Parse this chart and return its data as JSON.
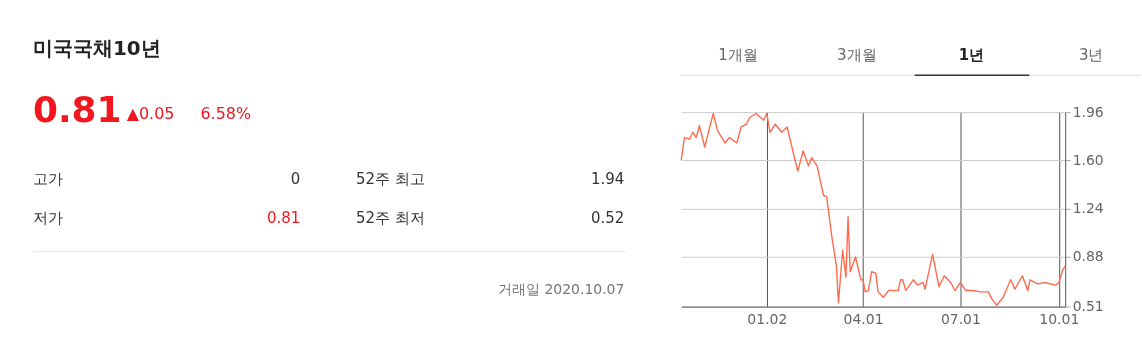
{
  "chart_data": [
    {
      "type": "other",
      "title": "미국국채10년",
      "annotations": [
        "0.81",
        "▲0.05",
        "6.58%",
        "고가",
        "0",
        "52주 최고",
        "1.94",
        "저가",
        "0.81",
        "52주 최저",
        "0.52",
        "거래일 2020.10.07"
      ]
    },
    {
      "type": "line",
      "annotations": [
        "1개월",
        "3개월",
        "1년",
        "3년"
      ],
      "x": [
        "2019-10-14",
        "2019-10-17",
        "2019-10-22",
        "2019-10-25",
        "2019-10-28",
        "2019-10-31",
        "2019-11-05",
        "2019-11-10",
        "2019-11-13",
        "2019-11-17",
        "2019-11-24",
        "2019-11-28",
        "2019-12-05",
        "2019-12-09",
        "2019-12-14",
        "2019-12-17",
        "2019-12-23",
        "2019-12-30",
        "2020-01-02",
        "2020-01-05",
        "2020-01-10",
        "2020-01-16",
        "2020-01-21",
        "2020-01-27",
        "2020-01-31",
        "2020-02-05",
        "2020-02-10",
        "2020-02-13",
        "2020-02-18",
        "2020-02-24",
        "2020-02-27",
        "2020-03-03",
        "2020-03-07",
        "2020-03-09",
        "2020-03-11",
        "2020-03-13",
        "2020-03-16",
        "2020-03-18",
        "2020-03-20",
        "2020-03-25",
        "2020-03-30",
        "2020-04-01",
        "2020-04-03",
        "2020-04-06",
        "2020-04-09",
        "2020-04-13",
        "2020-04-15",
        "2020-04-20",
        "2020-04-25",
        "2020-04-29",
        "2020-05-04",
        "2020-05-06",
        "2020-05-08",
        "2020-05-11",
        "2020-05-18",
        "2020-05-22",
        "2020-05-27",
        "2020-05-29",
        "2020-06-05",
        "2020-06-11",
        "2020-06-16",
        "2020-06-22",
        "2020-06-26",
        "2020-07-01",
        "2020-07-06",
        "2020-07-13",
        "2020-07-20",
        "2020-07-27",
        "2020-07-31",
        "2020-08-04",
        "2020-08-10",
        "2020-08-17",
        "2020-08-21",
        "2020-08-28",
        "2020-09-02",
        "2020-09-04",
        "2020-09-11",
        "2020-09-18",
        "2020-09-28",
        "2020-10-01",
        "2020-10-05",
        "2020-10-07"
      ],
      "series": [
        {
          "color": "#ff6b4f",
          "values": [
            1.6,
            1.77,
            1.76,
            1.81,
            1.77,
            1.86,
            1.7,
            1.86,
            1.95,
            1.82,
            1.73,
            1.77,
            1.73,
            1.85,
            1.87,
            1.92,
            1.95,
            1.9,
            1.95,
            1.81,
            1.87,
            1.81,
            1.85,
            1.65,
            1.52,
            1.67,
            1.56,
            1.62,
            1.56,
            1.34,
            1.33,
            1.02,
            0.82,
            0.54,
            0.74,
            0.93,
            0.73,
            1.18,
            0.77,
            0.88,
            0.71,
            0.71,
            0.62,
            0.63,
            0.77,
            0.76,
            0.62,
            0.58,
            0.63,
            0.63,
            0.63,
            0.71,
            0.71,
            0.63,
            0.71,
            0.67,
            0.69,
            0.64,
            0.9,
            0.66,
            0.74,
            0.69,
            0.63,
            0.69,
            0.63,
            0.63,
            0.62,
            0.62,
            0.56,
            0.52,
            0.58,
            0.71,
            0.64,
            0.74,
            0.63,
            0.71,
            0.68,
            0.69,
            0.67,
            0.69,
            0.79,
            0.81
          ]
        }
      ],
      "xlim": [
        "2019-10-14",
        "2020-10-07"
      ],
      "ylim": [
        0.51,
        1.96
      ],
      "xticks": [
        {
          "value": "2020-01-02",
          "label": "01.02"
        },
        {
          "value": "2020-04-01",
          "label": "04.01"
        },
        {
          "value": "2020-07-01",
          "label": "07.01"
        },
        {
          "value": "2020-10-01",
          "label": "10.01"
        }
      ],
      "yticks": [
        0.51,
        0.88,
        1.24,
        {
          "value": 1.6,
          "label": "1.60"
        },
        1.96
      ],
      "grid": true
    }
  ]
}
